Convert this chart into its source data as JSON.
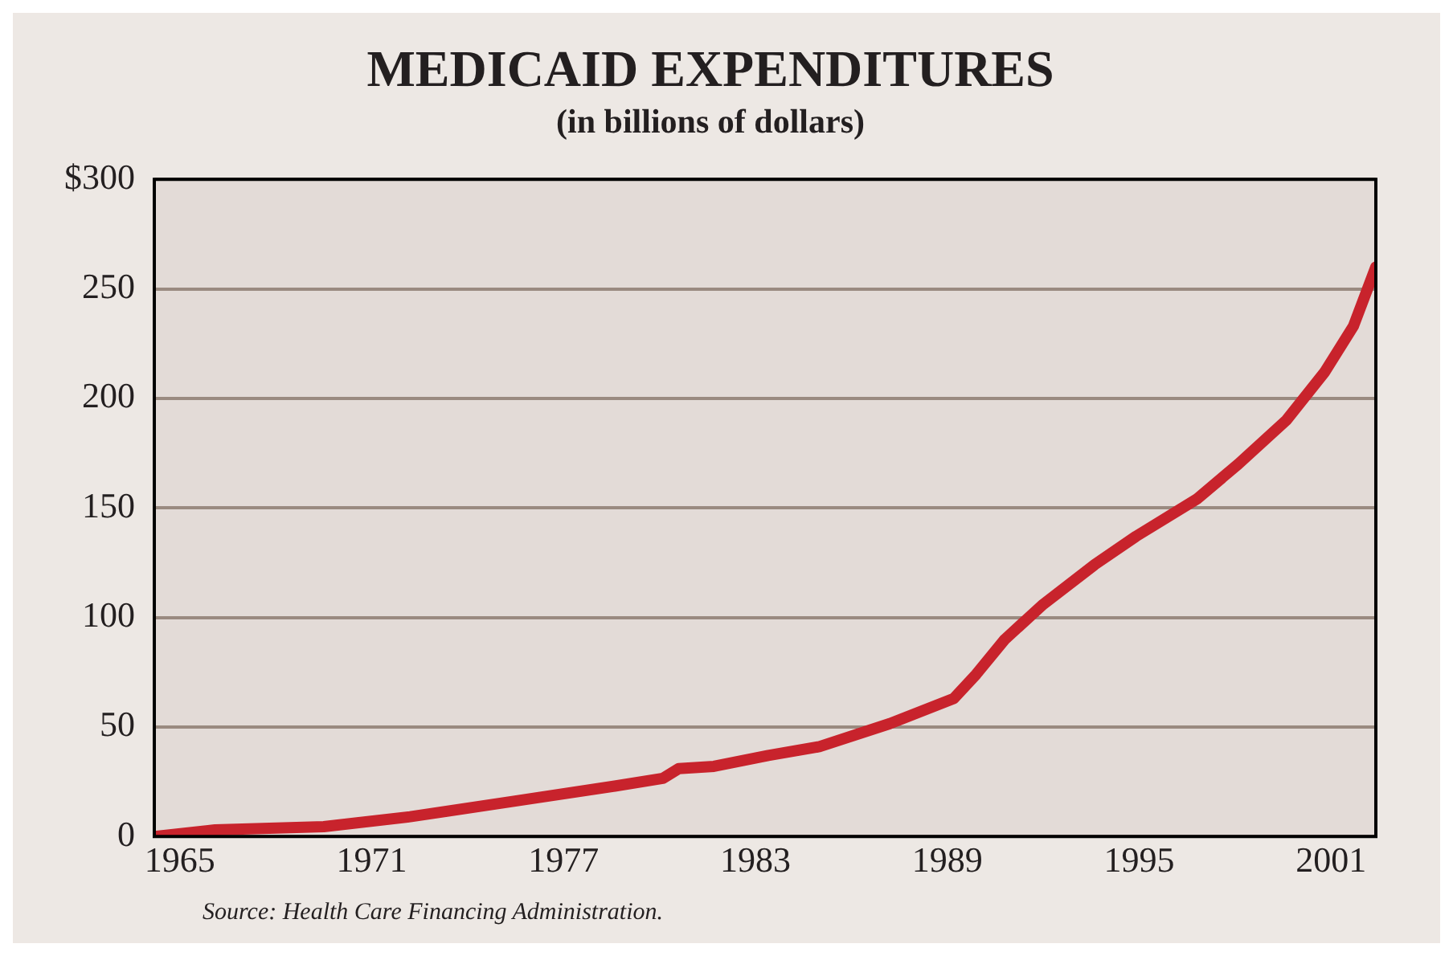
{
  "chart_data": {
    "type": "line",
    "title": "MEDICAID EXPENDITURES",
    "subtitle": "(in billions of dollars)",
    "annotations": [
      "Source: Health Care Financing Administration."
    ],
    "x": [
      1964.2,
      1966.1,
      1969.5,
      1972.2,
      1975.4,
      1978.6,
      1980.1,
      1980.6,
      1981.7,
      1983.4,
      1985,
      1987.2,
      1989.2,
      1989.9,
      1990.8,
      1992,
      1993.6,
      1994.9,
      1996.8,
      1998.1,
      1999.6,
      2000.8,
      2001.7,
      2002.4
    ],
    "series": [
      {
        "color": "#c8232c",
        "values": [
          0,
          3,
          4.5,
          9,
          16,
          23,
          26.5,
          31,
          32,
          37,
          41,
          51.5,
          63,
          74,
          90,
          106,
          124,
          137,
          154,
          170,
          190,
          212,
          233,
          260
        ]
      }
    ],
    "xlim": [
      1964.2,
      2002.4
    ],
    "xticks": [
      1965,
      1971,
      1977,
      1983,
      1989,
      1995,
      2001
    ],
    "ylim": [
      0,
      300
    ],
    "yticks": [
      0,
      50,
      100,
      150,
      200,
      250,
      {
        "value": 300,
        "label": "$300"
      }
    ],
    "grid": "y",
    "legend": false,
    "marker": "none",
    "line_style": "solid"
  }
}
